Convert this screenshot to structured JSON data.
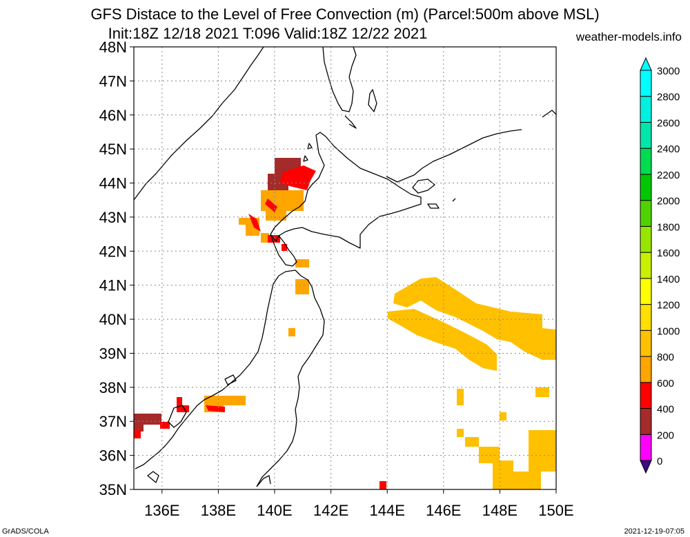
{
  "title": "GFS Distace to the Level of Free Convection (m) (Parcel:500m above MSL)",
  "subtitle": "Init:18Z 12/18 2021 T:096 Valid:18Z 12/22 2021",
  "source": "weather-models.info",
  "footer_left": "GrADS/COLA",
  "footer_right": "2021-12-19-07:05",
  "map": {
    "lat_labels": [
      "35N",
      "36N",
      "37N",
      "38N",
      "39N",
      "40N",
      "41N",
      "42N",
      "43N",
      "44N",
      "45N",
      "46N",
      "47N",
      "48N"
    ],
    "lon_labels": [
      "136E",
      "138E",
      "140E",
      "142E",
      "144E",
      "146E",
      "148E",
      "150E"
    ],
    "lat_range": [
      35,
      48
    ],
    "lon_range": [
      135,
      150
    ]
  },
  "legend": {
    "labels": [
      "0",
      "200",
      "400",
      "600",
      "800",
      "1000",
      "1200",
      "1400",
      "1600",
      "1800",
      "2000",
      "2200",
      "2400",
      "2600",
      "2800",
      "3000"
    ],
    "colors": [
      "#3c0b85",
      "#ff00ff",
      "#a52a2a",
      "#ff0000",
      "#ffa500",
      "#ffc000",
      "#ffe000",
      "#ffff00",
      "#c8f000",
      "#96e600",
      "#50d200",
      "#00c800",
      "#00dc50",
      "#00e6aa",
      "#00f0e0",
      "#00ffff"
    ]
  }
}
